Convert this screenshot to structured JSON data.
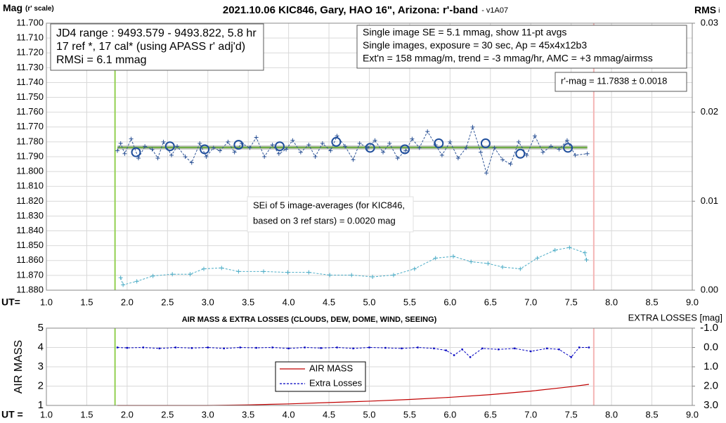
{
  "charts": [
    {
      "type": "scatter",
      "title": "2021.10.06 KIC846, Gary, HAO 16\", Arizona: r'-band",
      "version_note": "- v1A07",
      "y_label": "Mag",
      "y_label_note": "(r' scale)",
      "y2_label": "RMS",
      "y2_label_note": "i",
      "x_label": "UT=",
      "xlim": [
        1.0,
        9.0
      ],
      "xticks": [
        {
          "value": 1.0,
          "label": "1.0"
        },
        1.5,
        {
          "value": 2.0,
          "label": "2.0"
        },
        2.5,
        {
          "value": 3.0,
          "label": "3.0"
        },
        3.5,
        {
          "value": 4.0,
          "label": "4.0"
        },
        4.5,
        {
          "value": 5.0,
          "label": "5.0"
        },
        5.5,
        {
          "value": 6.0,
          "label": "6.0"
        },
        6.5,
        {
          "value": 7.0,
          "label": "7.0"
        },
        7.5,
        {
          "value": 8.0,
          "label": "8.0"
        },
        8.5,
        {
          "value": 9.0,
          "label": "9.0"
        }
      ],
      "ylim": [
        11.7,
        11.88
      ],
      "y_inverted": true,
      "yticks": [
        {
          "value": 11.7,
          "label": "11.700"
        },
        {
          "value": 11.71,
          "label": "11.710"
        },
        {
          "value": 11.72,
          "label": "11.720"
        },
        {
          "value": 11.73,
          "label": "11.730"
        },
        {
          "value": 11.74,
          "label": "11.740"
        },
        {
          "value": 11.75,
          "label": "11.750"
        },
        {
          "value": 11.76,
          "label": "11.760"
        },
        {
          "value": 11.77,
          "label": "11.770"
        },
        {
          "value": 11.78,
          "label": "11.780"
        },
        {
          "value": 11.79,
          "label": "11.790"
        },
        {
          "value": 11.8,
          "label": "11.800"
        },
        {
          "value": 11.81,
          "label": "11.810"
        },
        {
          "value": 11.82,
          "label": "11.820"
        },
        {
          "value": 11.83,
          "label": "11.830"
        },
        {
          "value": 11.84,
          "label": "11.840"
        },
        {
          "value": 11.85,
          "label": "11.850"
        },
        {
          "value": 11.86,
          "label": "11.860"
        },
        {
          "value": 11.87,
          "label": "11.870"
        },
        {
          "value": 11.88,
          "label": "11.880"
        }
      ],
      "y2lim": [
        0,
        0.03
      ],
      "y2ticks": [
        {
          "value": 0,
          "label": "0.00"
        },
        0.01,
        0.02,
        0.03
      ],
      "grid": true,
      "vlines": [
        {
          "value": 1.85,
          "color": "#92d050"
        },
        {
          "value": 7.78,
          "color": "#f4b6b6"
        }
      ],
      "trend": {
        "value": 11.7838,
        "color": "#70ad47"
      },
      "series": [
        {
          "marker": "plus",
          "line": "dashed",
          "color": "#2f5597",
          "x": [
            1.88,
            1.92,
            1.97,
            2.05,
            2.14,
            2.22,
            2.31,
            2.38,
            2.45,
            2.55,
            2.62,
            2.72,
            2.8,
            2.9,
            2.98,
            3.07,
            3.15,
            3.25,
            3.33,
            3.42,
            3.52,
            3.6,
            3.7,
            3.8,
            3.88,
            3.97,
            4.05,
            4.15,
            4.25,
            4.33,
            4.42,
            4.52,
            4.6,
            4.7,
            4.8,
            4.88,
            4.98,
            5.07,
            5.17,
            5.25,
            5.35,
            5.45,
            5.53,
            5.62,
            5.72,
            5.82,
            5.9,
            6.0,
            6.1,
            6.2,
            6.28,
            6.38,
            6.45,
            6.55,
            6.65,
            6.75,
            6.85,
            6.95,
            7.05,
            7.15,
            7.25,
            7.35,
            7.45,
            7.55,
            7.7
          ],
          "values": [
            11.786,
            11.781,
            11.788,
            11.778,
            11.791,
            11.783,
            11.785,
            11.791,
            11.78,
            11.789,
            11.783,
            11.79,
            11.794,
            11.781,
            11.79,
            11.784,
            11.786,
            11.78,
            11.787,
            11.781,
            11.784,
            11.777,
            11.79,
            11.782,
            11.788,
            11.785,
            11.779,
            11.787,
            11.782,
            11.79,
            11.781,
            11.786,
            11.776,
            11.783,
            11.792,
            11.781,
            11.784,
            11.779,
            11.787,
            11.781,
            11.791,
            11.786,
            11.778,
            11.784,
            11.773,
            11.782,
            11.789,
            11.78,
            11.791,
            11.784,
            11.77,
            11.787,
            11.801,
            11.784,
            11.792,
            11.795,
            11.78,
            11.789,
            11.776,
            11.787,
            11.783,
            11.785,
            11.779,
            11.789,
            11.788
          ]
        },
        {
          "marker": "circle",
          "line": "none",
          "color": "#1f4e9c",
          "x": [
            2.11,
            2.53,
            2.96,
            3.38,
            3.89,
            4.59,
            5.01,
            5.44,
            5.86,
            6.44,
            6.87,
            7.46
          ],
          "values": [
            11.787,
            11.783,
            11.785,
            11.782,
            11.783,
            11.78,
            11.784,
            11.785,
            11.781,
            11.781,
            11.788,
            11.784
          ]
        },
        {
          "marker": "plus",
          "line": "dashed",
          "color": "#4bacc6",
          "axis": "y2",
          "x": [
            1.92,
            1.95,
            2.12,
            2.32,
            2.56,
            2.78,
            2.95,
            3.17,
            3.38,
            3.69,
            3.99,
            4.25,
            4.51,
            4.78,
            5.04,
            5.3,
            5.56,
            5.82,
            6.04,
            6.26,
            6.47,
            6.65,
            6.87,
            7.08,
            7.3,
            7.48,
            7.67,
            7.69
          ],
          "values": [
            0.0014,
            0.0006,
            0.001,
            0.0016,
            0.0018,
            0.0018,
            0.0024,
            0.0025,
            0.0021,
            0.0021,
            0.002,
            0.002,
            0.0017,
            0.0017,
            0.0015,
            0.0017,
            0.0024,
            0.0036,
            0.0038,
            0.0032,
            0.003,
            0.0026,
            0.0024,
            0.0036,
            0.0045,
            0.0048,
            0.0042,
            0.0034
          ]
        }
      ],
      "annotations": [
        {
          "lines": [
            "JD4 range : 9493.579 - 9493.822,  5.8  hr",
            "17 ref *, 17 cal* (using APASS r' adj'd)",
            "RMSi = 6.1 mmag"
          ]
        },
        {
          "lines": [
            "Single image SE = 5.1 mmag, show  11-pt avgs",
            "Single images, exposure = 30 sec, Ap = 45x4x12b3",
            "Ext'n = 158 mmag/m, trend = -3  mmag/hr, AMC = +3 mmag/airmss"
          ]
        },
        {
          "lines": [
            "r'-mag = 11.7838 ± 0.0018"
          ]
        },
        {
          "lines": [
            "SEi of 5 image-averages (for KIC846,",
            "based on 3 ref stars) = 0.0020 mag"
          ]
        }
      ]
    },
    {
      "type": "line",
      "title": "AIR MASS & EXTRA LOSSES (CLOUDS, DEW, DOME, WIND, SEEING)",
      "y_label": "AIR MASS",
      "y2_label": "EXTRA LOSSES [mag]",
      "x_label": "UT =",
      "xlim": [
        1.0,
        9.0
      ],
      "xticks": [
        {
          "value": 1.0,
          "label": "1.0"
        },
        1.5,
        {
          "value": 2.0,
          "label": "2.0"
        },
        2.5,
        {
          "value": 3.0,
          "label": "3.0"
        },
        3.5,
        {
          "value": 4.0,
          "label": "4.0"
        },
        4.5,
        {
          "value": 5.0,
          "label": "5.0"
        },
        5.5,
        {
          "value": 6.0,
          "label": "6.0"
        },
        6.5,
        {
          "value": 7.0,
          "label": "7.0"
        },
        7.5,
        {
          "value": 8.0,
          "label": "8.0"
        },
        8.5,
        {
          "value": 9.0,
          "label": "9.0"
        }
      ],
      "ylim": [
        1,
        5
      ],
      "yticks": [
        1,
        2,
        3,
        4,
        5
      ],
      "y2lim": [
        -1,
        3
      ],
      "y2_inverted": true,
      "y2ticks": [
        {
          "value": -1,
          "label": "-1.0"
        },
        {
          "value": 0,
          "label": "0.0"
        },
        {
          "value": 1,
          "label": "1.0"
        },
        {
          "value": 2,
          "label": "2.0"
        },
        {
          "value": 3,
          "label": "3.0"
        }
      ],
      "grid": true,
      "legend": "center",
      "vlines": [
        {
          "value": 1.85,
          "color": "#92d050"
        },
        {
          "value": 7.78,
          "color": "#f4b6b6"
        }
      ],
      "series": [
        {
          "name": "AIR MASS",
          "marker": "none",
          "line": "solid",
          "color": "#c00000",
          "x": [
            1.88,
            2.5,
            3.0,
            3.5,
            4.0,
            4.5,
            5.0,
            5.5,
            6.0,
            6.5,
            7.0,
            7.5,
            7.72
          ],
          "values": [
            1.0,
            1.0,
            1.0,
            1.03,
            1.08,
            1.15,
            1.22,
            1.31,
            1.42,
            1.56,
            1.74,
            1.97,
            2.09
          ]
        },
        {
          "name": "Extra Losses",
          "marker": "dot",
          "line": "dashed",
          "color": "#0000c0",
          "axis": "y2",
          "x": [
            1.88,
            2.0,
            2.2,
            2.4,
            2.6,
            2.8,
            3.0,
            3.2,
            3.4,
            3.6,
            3.8,
            4.0,
            4.2,
            4.4,
            4.6,
            4.8,
            5.0,
            5.2,
            5.4,
            5.6,
            5.8,
            5.95,
            6.05,
            6.15,
            6.25,
            6.4,
            6.6,
            6.8,
            7.0,
            7.2,
            7.35,
            7.5,
            7.6,
            7.72
          ],
          "values": [
            0,
            0.02,
            0,
            0.05,
            0,
            0.03,
            0,
            0.05,
            0,
            0.02,
            0,
            0.05,
            0,
            0.03,
            0,
            0.05,
            0,
            0.02,
            0.05,
            0,
            0.05,
            0.15,
            0.4,
            0.1,
            0.5,
            0.05,
            0.1,
            0.05,
            0.2,
            0.05,
            0.1,
            0.5,
            0,
            0
          ]
        }
      ]
    }
  ]
}
